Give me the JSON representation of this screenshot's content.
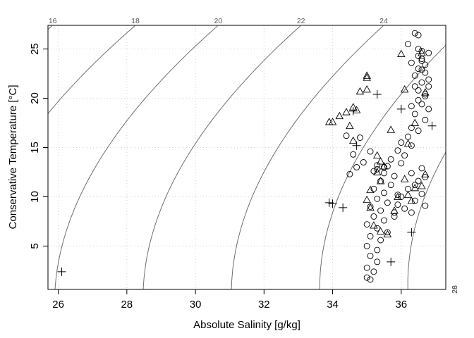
{
  "chart_data": {
    "type": "scatter",
    "title": "",
    "xlabel": "Absolute Salinity [g/kg]",
    "ylabel": "Conservative Temperature [°C]",
    "xlim": [
      25.7,
      37.3
    ],
    "ylim": [
      0.6,
      27.4
    ],
    "x_ticks": [
      26,
      28,
      30,
      32,
      34,
      36
    ],
    "y_ticks": [
      5,
      10,
      15,
      20,
      25
    ],
    "grid": true,
    "legend": "none",
    "contours": {
      "quantity": "density anomaly (sigma0)",
      "levels": [
        "16",
        "18",
        "20",
        "22",
        "24",
        "26",
        "28"
      ]
    },
    "series": [
      {
        "marker": "circle",
        "points": [
          [
            36.4,
            26.6
          ],
          [
            36.5,
            26.4
          ],
          [
            36.5,
            25.0
          ],
          [
            36.6,
            24.8
          ],
          [
            36.8,
            24.6
          ],
          [
            36.6,
            24.0
          ],
          [
            36.7,
            23.4
          ],
          [
            36.5,
            23.0
          ],
          [
            36.7,
            22.6
          ],
          [
            36.4,
            22.3
          ],
          [
            36.6,
            21.6
          ],
          [
            36.8,
            21.2
          ],
          [
            36.5,
            20.8
          ],
          [
            36.7,
            20.2
          ],
          [
            36.6,
            19.4
          ],
          [
            36.8,
            18.9
          ],
          [
            36.4,
            18.4
          ],
          [
            36.7,
            17.8
          ],
          [
            36.3,
            17.0
          ],
          [
            36.5,
            16.7
          ],
          [
            36.2,
            16.1
          ],
          [
            36.0,
            15.5
          ],
          [
            36.3,
            15.2
          ],
          [
            35.9,
            14.7
          ],
          [
            36.1,
            14.2
          ],
          [
            35.7,
            13.8
          ],
          [
            36.0,
            13.4
          ],
          [
            35.6,
            13.1
          ],
          [
            35.3,
            12.8
          ],
          [
            35.5,
            12.4
          ],
          [
            35.8,
            12.1
          ],
          [
            35.4,
            11.6
          ],
          [
            35.7,
            11.2
          ],
          [
            35.2,
            10.8
          ],
          [
            35.5,
            10.4
          ],
          [
            35.9,
            10.2
          ],
          [
            35.3,
            9.8
          ],
          [
            35.6,
            9.4
          ],
          [
            35.1,
            9.0
          ],
          [
            35.4,
            8.6
          ],
          [
            35.8,
            8.4
          ],
          [
            35.2,
            8.0
          ],
          [
            35.5,
            7.6
          ],
          [
            35.0,
            7.2
          ],
          [
            35.3,
            6.8
          ],
          [
            35.6,
            6.4
          ],
          [
            35.1,
            6.0
          ],
          [
            35.4,
            5.6
          ],
          [
            35.0,
            5.0
          ],
          [
            35.3,
            4.6
          ],
          [
            35.1,
            4.0
          ],
          [
            35.3,
            3.4
          ],
          [
            35.0,
            2.8
          ],
          [
            35.2,
            2.4
          ],
          [
            35.0,
            1.8
          ],
          [
            35.1,
            1.6
          ],
          [
            36.7,
            12.0
          ],
          [
            36.5,
            11.6
          ],
          [
            36.3,
            12.4
          ],
          [
            36.6,
            12.9
          ],
          [
            36.4,
            11.2
          ],
          [
            36.2,
            10.8
          ],
          [
            36.6,
            10.3
          ],
          [
            36.0,
            10.0
          ],
          [
            36.4,
            9.6
          ],
          [
            36.7,
            9.1
          ],
          [
            35.9,
            9.2
          ],
          [
            36.1,
            8.8
          ],
          [
            36.3,
            8.4
          ],
          [
            35.8,
            8.0
          ],
          [
            34.4,
            16.2
          ],
          [
            34.8,
            16.0
          ],
          [
            35.1,
            14.6
          ],
          [
            34.6,
            14.3
          ],
          [
            34.9,
            13.5
          ],
          [
            35.3,
            13.2
          ],
          [
            35.5,
            13.0
          ],
          [
            34.7,
            13.0
          ],
          [
            35.2,
            12.6
          ],
          [
            34.5,
            12.3
          ],
          [
            36.2,
            25.5
          ],
          [
            36.5,
            24.3
          ],
          [
            36.3,
            23.6
          ],
          [
            36.6,
            23.8
          ],
          [
            36.4,
            21.2
          ],
          [
            36.7,
            20.4
          ],
          [
            36.5,
            19.8
          ],
          [
            36.3,
            19.2
          ],
          [
            36.8,
            21.9
          ],
          [
            36.6,
            22.9
          ]
        ]
      },
      {
        "marker": "triangle",
        "points": [
          [
            36.0,
            24.5
          ],
          [
            36.6,
            24.6
          ],
          [
            35.0,
            22.3
          ],
          [
            35.0,
            22.1
          ],
          [
            34.8,
            20.7
          ],
          [
            35.0,
            20.9
          ],
          [
            36.1,
            20.9
          ],
          [
            36.7,
            20.6
          ],
          [
            34.6,
            19.1
          ],
          [
            34.4,
            18.6
          ],
          [
            34.7,
            18.8
          ],
          [
            34.2,
            18.2
          ],
          [
            34.0,
            17.6
          ],
          [
            33.9,
            17.6
          ],
          [
            34.5,
            17.2
          ],
          [
            35.7,
            16.8
          ],
          [
            36.4,
            17.5
          ],
          [
            34.6,
            15.7
          ],
          [
            36.2,
            15.4
          ],
          [
            35.3,
            14.2
          ],
          [
            35.4,
            13.6
          ],
          [
            35.5,
            13.1
          ],
          [
            35.3,
            12.5
          ],
          [
            36.1,
            11.8
          ],
          [
            36.7,
            12.3
          ],
          [
            35.4,
            11.6
          ],
          [
            36.6,
            11.1
          ],
          [
            36.4,
            10.9
          ],
          [
            35.1,
            10.7
          ],
          [
            36.2,
            10.2
          ],
          [
            35.9,
            10.0
          ],
          [
            35.0,
            9.7
          ],
          [
            36.3,
            9.6
          ],
          [
            35.1,
            8.9
          ],
          [
            35.8,
            8.6
          ],
          [
            35.2,
            7.1
          ],
          [
            35.4,
            6.5
          ],
          [
            35.6,
            6.2
          ]
        ]
      },
      {
        "marker": "plus",
        "points": [
          [
            35.3,
            20.4
          ],
          [
            34.6,
            18.7
          ],
          [
            36.0,
            18.9
          ],
          [
            36.9,
            17.2
          ],
          [
            34.7,
            15.2
          ],
          [
            33.9,
            9.4
          ],
          [
            34.0,
            9.3
          ],
          [
            34.3,
            8.9
          ],
          [
            36.3,
            6.4
          ],
          [
            35.7,
            3.4
          ],
          [
            26.1,
            2.4
          ]
        ]
      }
    ]
  }
}
